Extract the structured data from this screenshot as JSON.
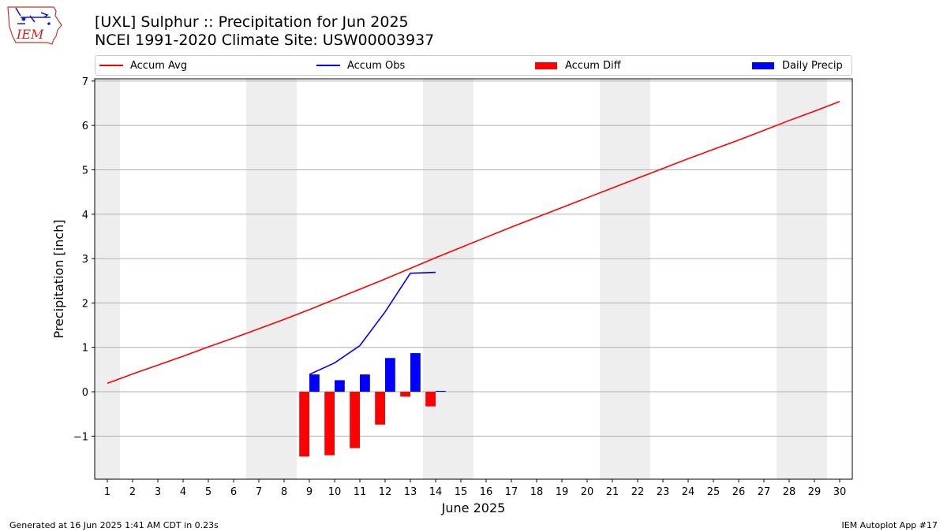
{
  "header": {
    "title_line1": "[UXL] Sulphur :: Precipitation for Jun 2025",
    "title_line2": "NCEI 1991-2020 Climate Site: USW00003937",
    "logo_text": "IEM"
  },
  "footer": {
    "generated": "Generated at 16 Jun 2025 1:41 AM CDT in 0.23s",
    "app": "IEM Autoplot App #17"
  },
  "legend": {
    "items": [
      {
        "label": "Accum Avg",
        "type": "line",
        "color": "#ff0000"
      },
      {
        "label": "Accum Obs",
        "type": "line",
        "color": "#0000ff"
      },
      {
        "label": "Accum Diff",
        "type": "bar",
        "color": "#ff0000"
      },
      {
        "label": "Daily Precip",
        "type": "bar",
        "color": "#0000ff"
      }
    ]
  },
  "chart_data": {
    "type": "bar",
    "title": "[UXL] Sulphur :: Precipitation for Jun 2025",
    "xlabel": "June 2025",
    "ylabel": "Precipitation [inch]",
    "xlim": [
      0.5,
      30.5
    ],
    "ylim": [
      -1.97,
      7.05
    ],
    "x_ticks": [
      1,
      2,
      3,
      4,
      5,
      6,
      7,
      8,
      9,
      10,
      11,
      12,
      13,
      14,
      15,
      16,
      17,
      18,
      19,
      20,
      21,
      22,
      23,
      24,
      25,
      26,
      27,
      28,
      29,
      30
    ],
    "y_ticks": [
      -1,
      0,
      1,
      2,
      3,
      4,
      5,
      6,
      7
    ],
    "grid": "y",
    "weekend_shading": [
      [
        0.5,
        1.5
      ],
      [
        6.5,
        8.5
      ],
      [
        13.5,
        15.5
      ],
      [
        20.5,
        22.5
      ],
      [
        27.5,
        29.5
      ]
    ],
    "shade_color": "#eeeeee",
    "series": [
      {
        "name": "Accum Avg",
        "type": "line",
        "color": "#ff0000",
        "x": [
          1,
          2,
          3,
          4,
          5,
          6,
          7,
          8,
          9,
          10,
          11,
          12,
          13,
          14,
          15,
          16,
          17,
          18,
          19,
          20,
          21,
          22,
          23,
          24,
          25,
          26,
          27,
          28,
          29,
          30
        ],
        "values": [
          0.19,
          0.4,
          0.6,
          0.8,
          1.01,
          1.21,
          1.42,
          1.63,
          1.85,
          2.08,
          2.31,
          2.54,
          2.78,
          3.02,
          3.25,
          3.48,
          3.71,
          3.93,
          4.15,
          4.37,
          4.59,
          4.81,
          5.03,
          5.25,
          5.46,
          5.67,
          5.89,
          6.11,
          6.32,
          6.54
        ]
      },
      {
        "name": "Accum Obs",
        "type": "line",
        "color": "#0000ff",
        "x": [
          9,
          10,
          11,
          12,
          13,
          14
        ],
        "values": [
          0.39,
          0.65,
          1.04,
          1.8,
          2.67,
          2.69
        ]
      },
      {
        "name": "Accum Diff",
        "type": "bar",
        "color": "#ff0000",
        "x": [
          9,
          10,
          11,
          12,
          13,
          14
        ],
        "values": [
          -1.46,
          -1.43,
          -1.27,
          -0.74,
          -0.11,
          -0.33
        ]
      },
      {
        "name": "Daily Precip",
        "type": "bar",
        "color": "#0000ff",
        "x": [
          9,
          10,
          11,
          12,
          13,
          14
        ],
        "values": [
          0.39,
          0.26,
          0.39,
          0.76,
          0.87,
          0.02
        ]
      }
    ]
  }
}
